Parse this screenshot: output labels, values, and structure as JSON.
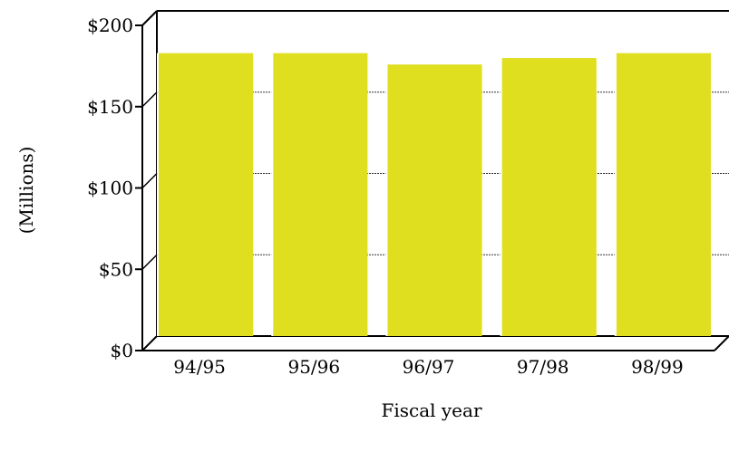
{
  "chart_data": {
    "type": "bar",
    "categories": [
      "94/95",
      "95/96",
      "96/97",
      "97/98",
      "98/99"
    ],
    "values": [
      174,
      174,
      167,
      171,
      174
    ],
    "ylim": [
      0,
      200
    ],
    "yticks": [
      0,
      50,
      100,
      150,
      200
    ],
    "ytick_labels": [
      "$0",
      "$50",
      "$100",
      "$150",
      "$200"
    ],
    "xlabel": "Fiscal year",
    "ylabel": "(Millions)",
    "grid": true,
    "bar_color": "#dfdf20",
    "style": "3d-box"
  }
}
